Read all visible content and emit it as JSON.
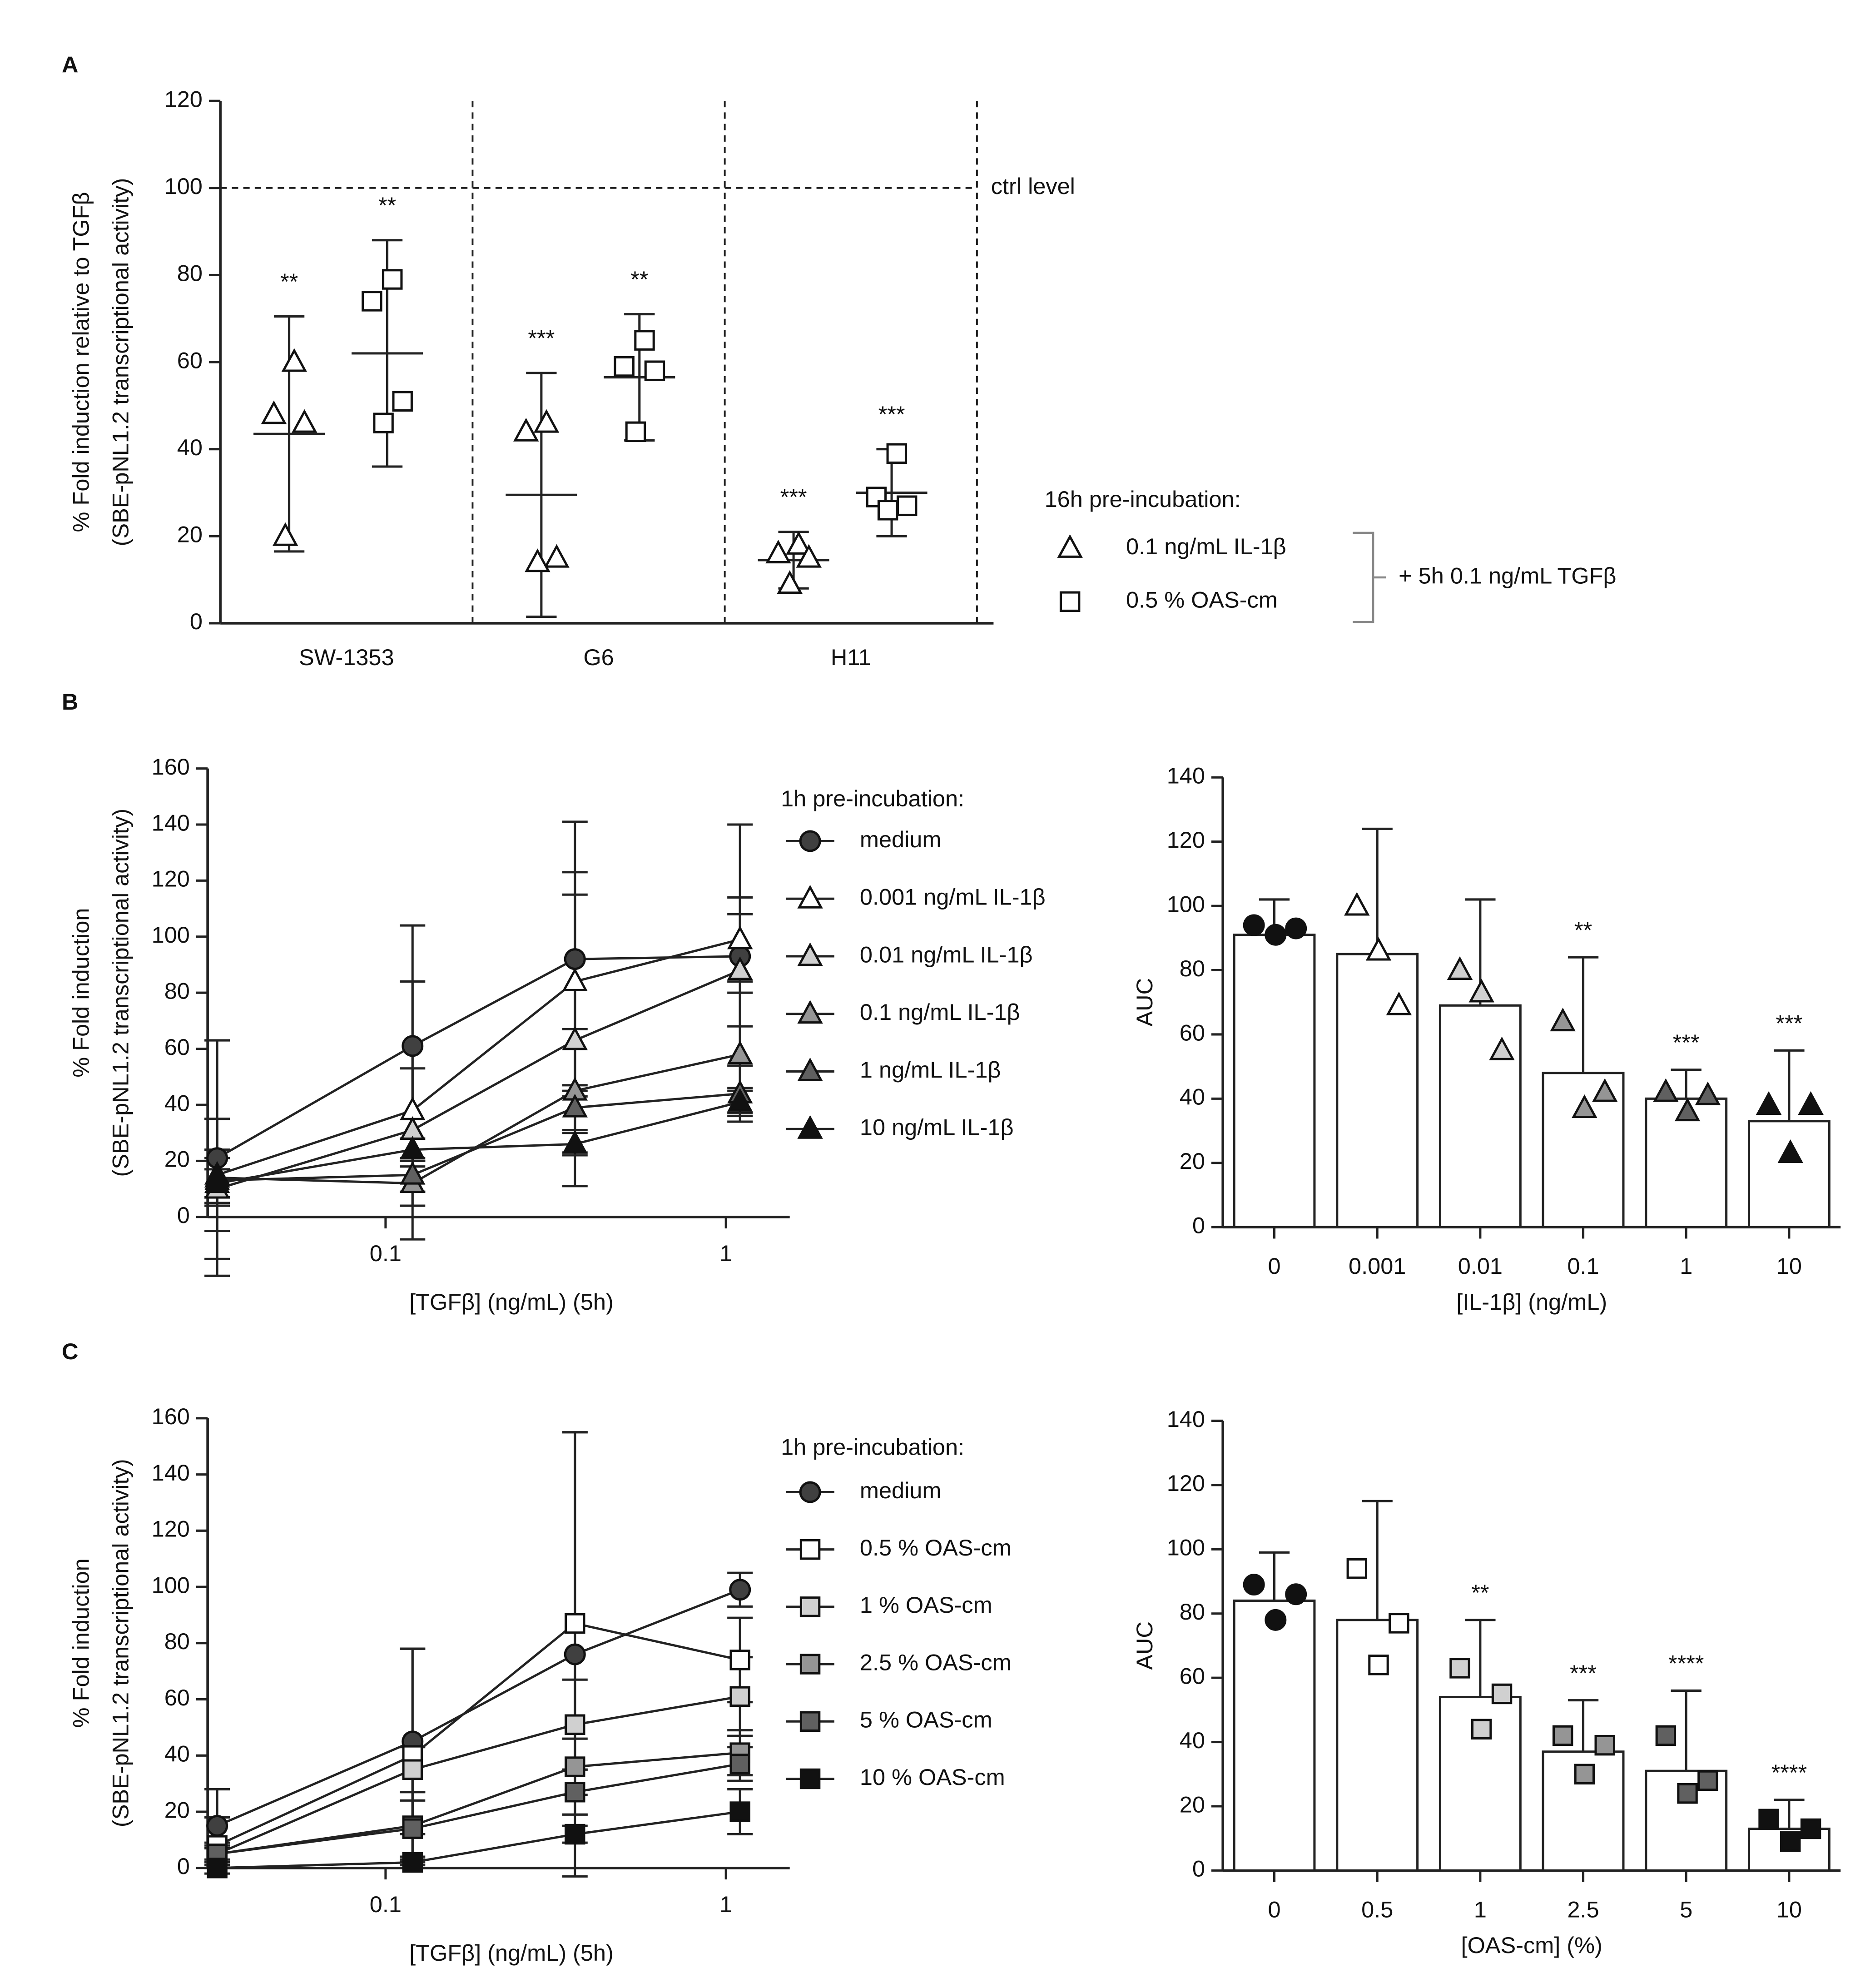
{
  "chart_data": [
    {
      "type": "dot",
      "panel": "A",
      "categories": [
        "SW-1353",
        "G6",
        "H11"
      ],
      "ylabel": [
        "% Fold induction relative to TGFβ",
        "(SBE-pNL1.2 transcriptional activity)"
      ],
      "ylim": [
        0,
        120
      ],
      "yticks": [
        0,
        20,
        40,
        60,
        80,
        100,
        120
      ],
      "reference": {
        "value": 100,
        "label": "ctrl level"
      },
      "legend_title": "16h pre-incubation:",
      "legend_note": "+ 5h 0.1 ng/mL TGFβ",
      "series": [
        {
          "name": "0.1 ng/mL IL-1β",
          "marker": "triangle",
          "color": "#ffffff",
          "points": [
            [
              60,
              48,
              46,
              20
            ],
            [
              46,
              44,
              15,
              14
            ],
            [
              18,
              16,
              15,
              9
            ]
          ],
          "mean": [
            43.5,
            29.5,
            14.5
          ],
          "sd": [
            27,
            28,
            6.5
          ],
          "annotations": [
            "**",
            "***",
            "***"
          ]
        },
        {
          "name": "0.5 % OAS-cm",
          "marker": "square",
          "color": "#ffffff",
          "points": [
            [
              79,
              74,
              51,
              46
            ],
            [
              65,
              59,
              58,
              44
            ],
            [
              39,
              29,
              27,
              26
            ]
          ],
          "mean": [
            62,
            56.5,
            30
          ],
          "sd": [
            26,
            14.5,
            10
          ],
          "annotations": [
            "**",
            "**",
            "***"
          ]
        }
      ]
    },
    {
      "type": "line",
      "panel": "B",
      "x": [
        0.032,
        0.12,
        0.36,
        1.1
      ],
      "xlim": [
        0.03,
        1.54
      ],
      "xticks": [
        0.1,
        1
      ],
      "log_x": true,
      "ylim": [
        0,
        160
      ],
      "yticks": [
        0,
        20,
        40,
        60,
        80,
        100,
        120,
        140,
        160
      ],
      "xlabel": "[TGFβ] (ng/mL) (5h)",
      "ylabel": [
        "% Fold induction",
        "(SBE-pNL1.2 transcriptional activity)"
      ],
      "legend_title": "1h pre-incubation:",
      "series": [
        {
          "name": "medium",
          "marker": "circle",
          "color": "#404040",
          "values": [
            21,
            61,
            92,
            93
          ],
          "errors": [
            42,
            43,
            49,
            47
          ]
        },
        {
          "name": "0.001 ng/mL IL-1β",
          "marker": "triangle",
          "color": "#ffffff",
          "values": [
            15,
            38,
            84,
            99
          ],
          "errors": [
            20,
            46,
            39,
            15
          ]
        },
        {
          "name": "0.01 ng/mL IL-1β",
          "marker": "triangle",
          "color": "#d0d0d0",
          "values": [
            10,
            31,
            63,
            88
          ],
          "errors": [
            25,
            22,
            52,
            20
          ]
        },
        {
          "name": "0.1 ng/mL IL-1β",
          "marker": "triangle",
          "color": "#959595",
          "values": [
            14,
            12,
            45,
            58
          ],
          "errors": [
            10,
            8,
            22,
            22
          ]
        },
        {
          "name": "1 ng/mL IL-1β",
          "marker": "triangle",
          "color": "#606060",
          "values": [
            13,
            15,
            39,
            44
          ],
          "errors": [
            8,
            6,
            8,
            10
          ]
        },
        {
          "name": "10 ng/mL IL-1β",
          "marker": "triangle",
          "color": "#111111",
          "values": [
            12,
            24,
            26,
            41
          ],
          "errors": [
            5,
            4,
            4,
            4
          ]
        }
      ]
    },
    {
      "type": "bar",
      "categories": [
        "0",
        "0.001",
        "0.01",
        "0.1",
        "1",
        "10"
      ],
      "values": [
        91,
        85,
        69,
        48,
        40,
        33
      ],
      "errors": [
        11,
        39,
        33,
        36,
        9,
        22
      ],
      "points": [
        [
          94,
          91,
          93
        ],
        [
          100,
          86,
          69
        ],
        [
          80,
          73,
          55
        ],
        [
          64,
          37,
          42
        ],
        [
          42,
          36,
          41
        ],
        [
          38,
          23,
          38
        ]
      ],
      "point_markers": [
        "circle",
        "triangle",
        "triangle",
        "triangle",
        "triangle",
        "triangle"
      ],
      "point_colors": [
        "#111111",
        "#ffffff",
        "#d0d0d0",
        "#959595",
        "#606060",
        "#111111"
      ],
      "annotations": [
        null,
        null,
        null,
        "**",
        "***",
        "***"
      ],
      "color": "#ffffff",
      "ylim": [
        0,
        140
      ],
      "yticks": [
        0,
        20,
        40,
        60,
        80,
        100,
        120,
        140
      ],
      "xlabel": "[IL-1β] (ng/mL)",
      "ylabel": "AUC"
    },
    {
      "type": "line",
      "panel": "C",
      "x": [
        0.032,
        0.12,
        0.36,
        1.1
      ],
      "xlim": [
        0.03,
        1.54
      ],
      "xticks": [
        0.1,
        1
      ],
      "log_x": true,
      "ylim": [
        0,
        160
      ],
      "yticks": [
        0,
        20,
        40,
        60,
        80,
        100,
        120,
        140,
        160
      ],
      "xlabel": "[TGFβ] (ng/mL) (5h)",
      "ylabel": [
        "% Fold induction",
        "(SBE-pNL1.2 transcriptional activity)"
      ],
      "legend_title": "1h pre-incubation:",
      "series": [
        {
          "name": "medium",
          "marker": "circle",
          "color": "#404040",
          "values": [
            15,
            45,
            76,
            99
          ],
          "errors": [
            13,
            33,
            79,
            6
          ]
        },
        {
          "name": "0.5 % OAS-cm",
          "marker": "square",
          "color": "#ffffff",
          "values": [
            8,
            40,
            87,
            74
          ],
          "errors": [
            10,
            38,
            68,
            15
          ]
        },
        {
          "name": "1 % OAS-cm",
          "marker": "square",
          "color": "#d0d0d0",
          "values": [
            5,
            35,
            51,
            61
          ],
          "errors": [
            4,
            8,
            16,
            14
          ]
        },
        {
          "name": "2.5 % OAS-cm",
          "marker": "square",
          "color": "#959595",
          "values": [
            5,
            15,
            36,
            41
          ],
          "errors": [
            3,
            12,
            10,
            8
          ]
        },
        {
          "name": "5 % OAS-cm",
          "marker": "square",
          "color": "#606060",
          "values": [
            5,
            14,
            27,
            37
          ],
          "errors": [
            2,
            10,
            8,
            6
          ]
        },
        {
          "name": "10 % OAS-cm",
          "marker": "square",
          "color": "#111111",
          "values": [
            0,
            2,
            12,
            20
          ],
          "errors": [
            0,
            1,
            3,
            8
          ]
        }
      ]
    },
    {
      "type": "bar",
      "categories": [
        "0",
        "0.5",
        "1",
        "2.5",
        "5",
        "10"
      ],
      "values": [
        84,
        78,
        54,
        37,
        31,
        13
      ],
      "errors": [
        15,
        37,
        24,
        16,
        25,
        9
      ],
      "points": [
        [
          89,
          78,
          86
        ],
        [
          94,
          64,
          77
        ],
        [
          63,
          44,
          55
        ],
        [
          42,
          30,
          39
        ],
        [
          42,
          24,
          28
        ],
        [
          16,
          9,
          13
        ]
      ],
      "point_markers": [
        "circle",
        "square",
        "square",
        "square",
        "square",
        "square"
      ],
      "point_colors": [
        "#111111",
        "#ffffff",
        "#d0d0d0",
        "#959595",
        "#606060",
        "#111111"
      ],
      "annotations": [
        null,
        null,
        "**",
        "***",
        "****",
        "****"
      ],
      "color": "#ffffff",
      "ylim": [
        0,
        140
      ],
      "yticks": [
        0,
        20,
        40,
        60,
        80,
        100,
        120,
        140
      ],
      "xlabel": "[OAS-cm] (%)",
      "ylabel": "AUC"
    }
  ]
}
